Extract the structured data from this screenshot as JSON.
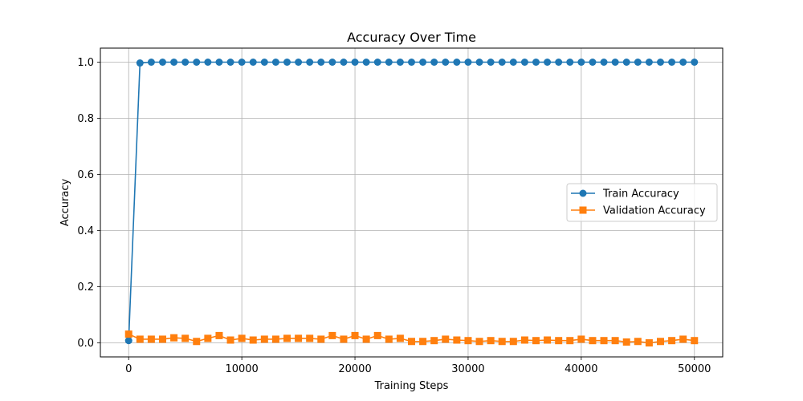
{
  "chart_data": {
    "type": "line",
    "title": "Accuracy Over Time",
    "xlabel": "Training Steps",
    "ylabel": "Accuracy",
    "xlim": [
      -2500,
      52500
    ],
    "ylim": [
      -0.05,
      1.05
    ],
    "xticks": [
      0,
      10000,
      20000,
      30000,
      40000,
      50000
    ],
    "xtick_labels": [
      "0",
      "10000",
      "20000",
      "30000",
      "40000",
      "50000"
    ],
    "yticks": [
      0.0,
      0.2,
      0.4,
      0.6,
      0.8,
      1.0
    ],
    "ytick_labels": [
      "0.0",
      "0.2",
      "0.4",
      "0.6",
      "0.8",
      "1.0"
    ],
    "grid": true,
    "legend_position": "center-right",
    "x": [
      0,
      1000,
      2000,
      3000,
      4000,
      5000,
      6000,
      7000,
      8000,
      9000,
      10000,
      11000,
      12000,
      13000,
      14000,
      15000,
      16000,
      17000,
      18000,
      19000,
      20000,
      21000,
      22000,
      23000,
      24000,
      25000,
      26000,
      27000,
      28000,
      29000,
      30000,
      31000,
      32000,
      33000,
      34000,
      35000,
      36000,
      37000,
      38000,
      39000,
      40000,
      41000,
      42000,
      43000,
      44000,
      45000,
      46000,
      47000,
      48000,
      49000,
      50000
    ],
    "series": [
      {
        "name": "Train Accuracy",
        "color": "#1f77b4",
        "marker": "circle",
        "values": [
          0.008,
          0.997,
          1,
          1,
          1,
          1,
          1,
          1,
          1,
          1,
          1,
          1,
          1,
          1,
          1,
          1,
          1,
          1,
          1,
          1,
          1,
          1,
          1,
          1,
          1,
          1,
          1,
          1,
          1,
          1,
          1,
          1,
          1,
          1,
          1,
          1,
          1,
          1,
          1,
          1,
          1,
          1,
          1,
          1,
          1,
          1,
          1,
          1,
          1,
          1,
          1
        ]
      },
      {
        "name": "Validation Accuracy",
        "color": "#ff7f0e",
        "marker": "square",
        "values": [
          0.031,
          0.013,
          0.013,
          0.013,
          0.018,
          0.016,
          0.005,
          0.016,
          0.026,
          0.01,
          0.016,
          0.01,
          0.013,
          0.013,
          0.016,
          0.016,
          0.016,
          0.013,
          0.026,
          0.013,
          0.026,
          0.013,
          0.026,
          0.013,
          0.016,
          0.005,
          0.005,
          0.008,
          0.013,
          0.01,
          0.008,
          0.005,
          0.008,
          0.005,
          0.005,
          0.01,
          0.008,
          0.01,
          0.008,
          0.008,
          0.013,
          0.008,
          0.008,
          0.008,
          0.003,
          0.005,
          0.0,
          0.005,
          0.008,
          0.013,
          0.008
        ]
      }
    ]
  }
}
